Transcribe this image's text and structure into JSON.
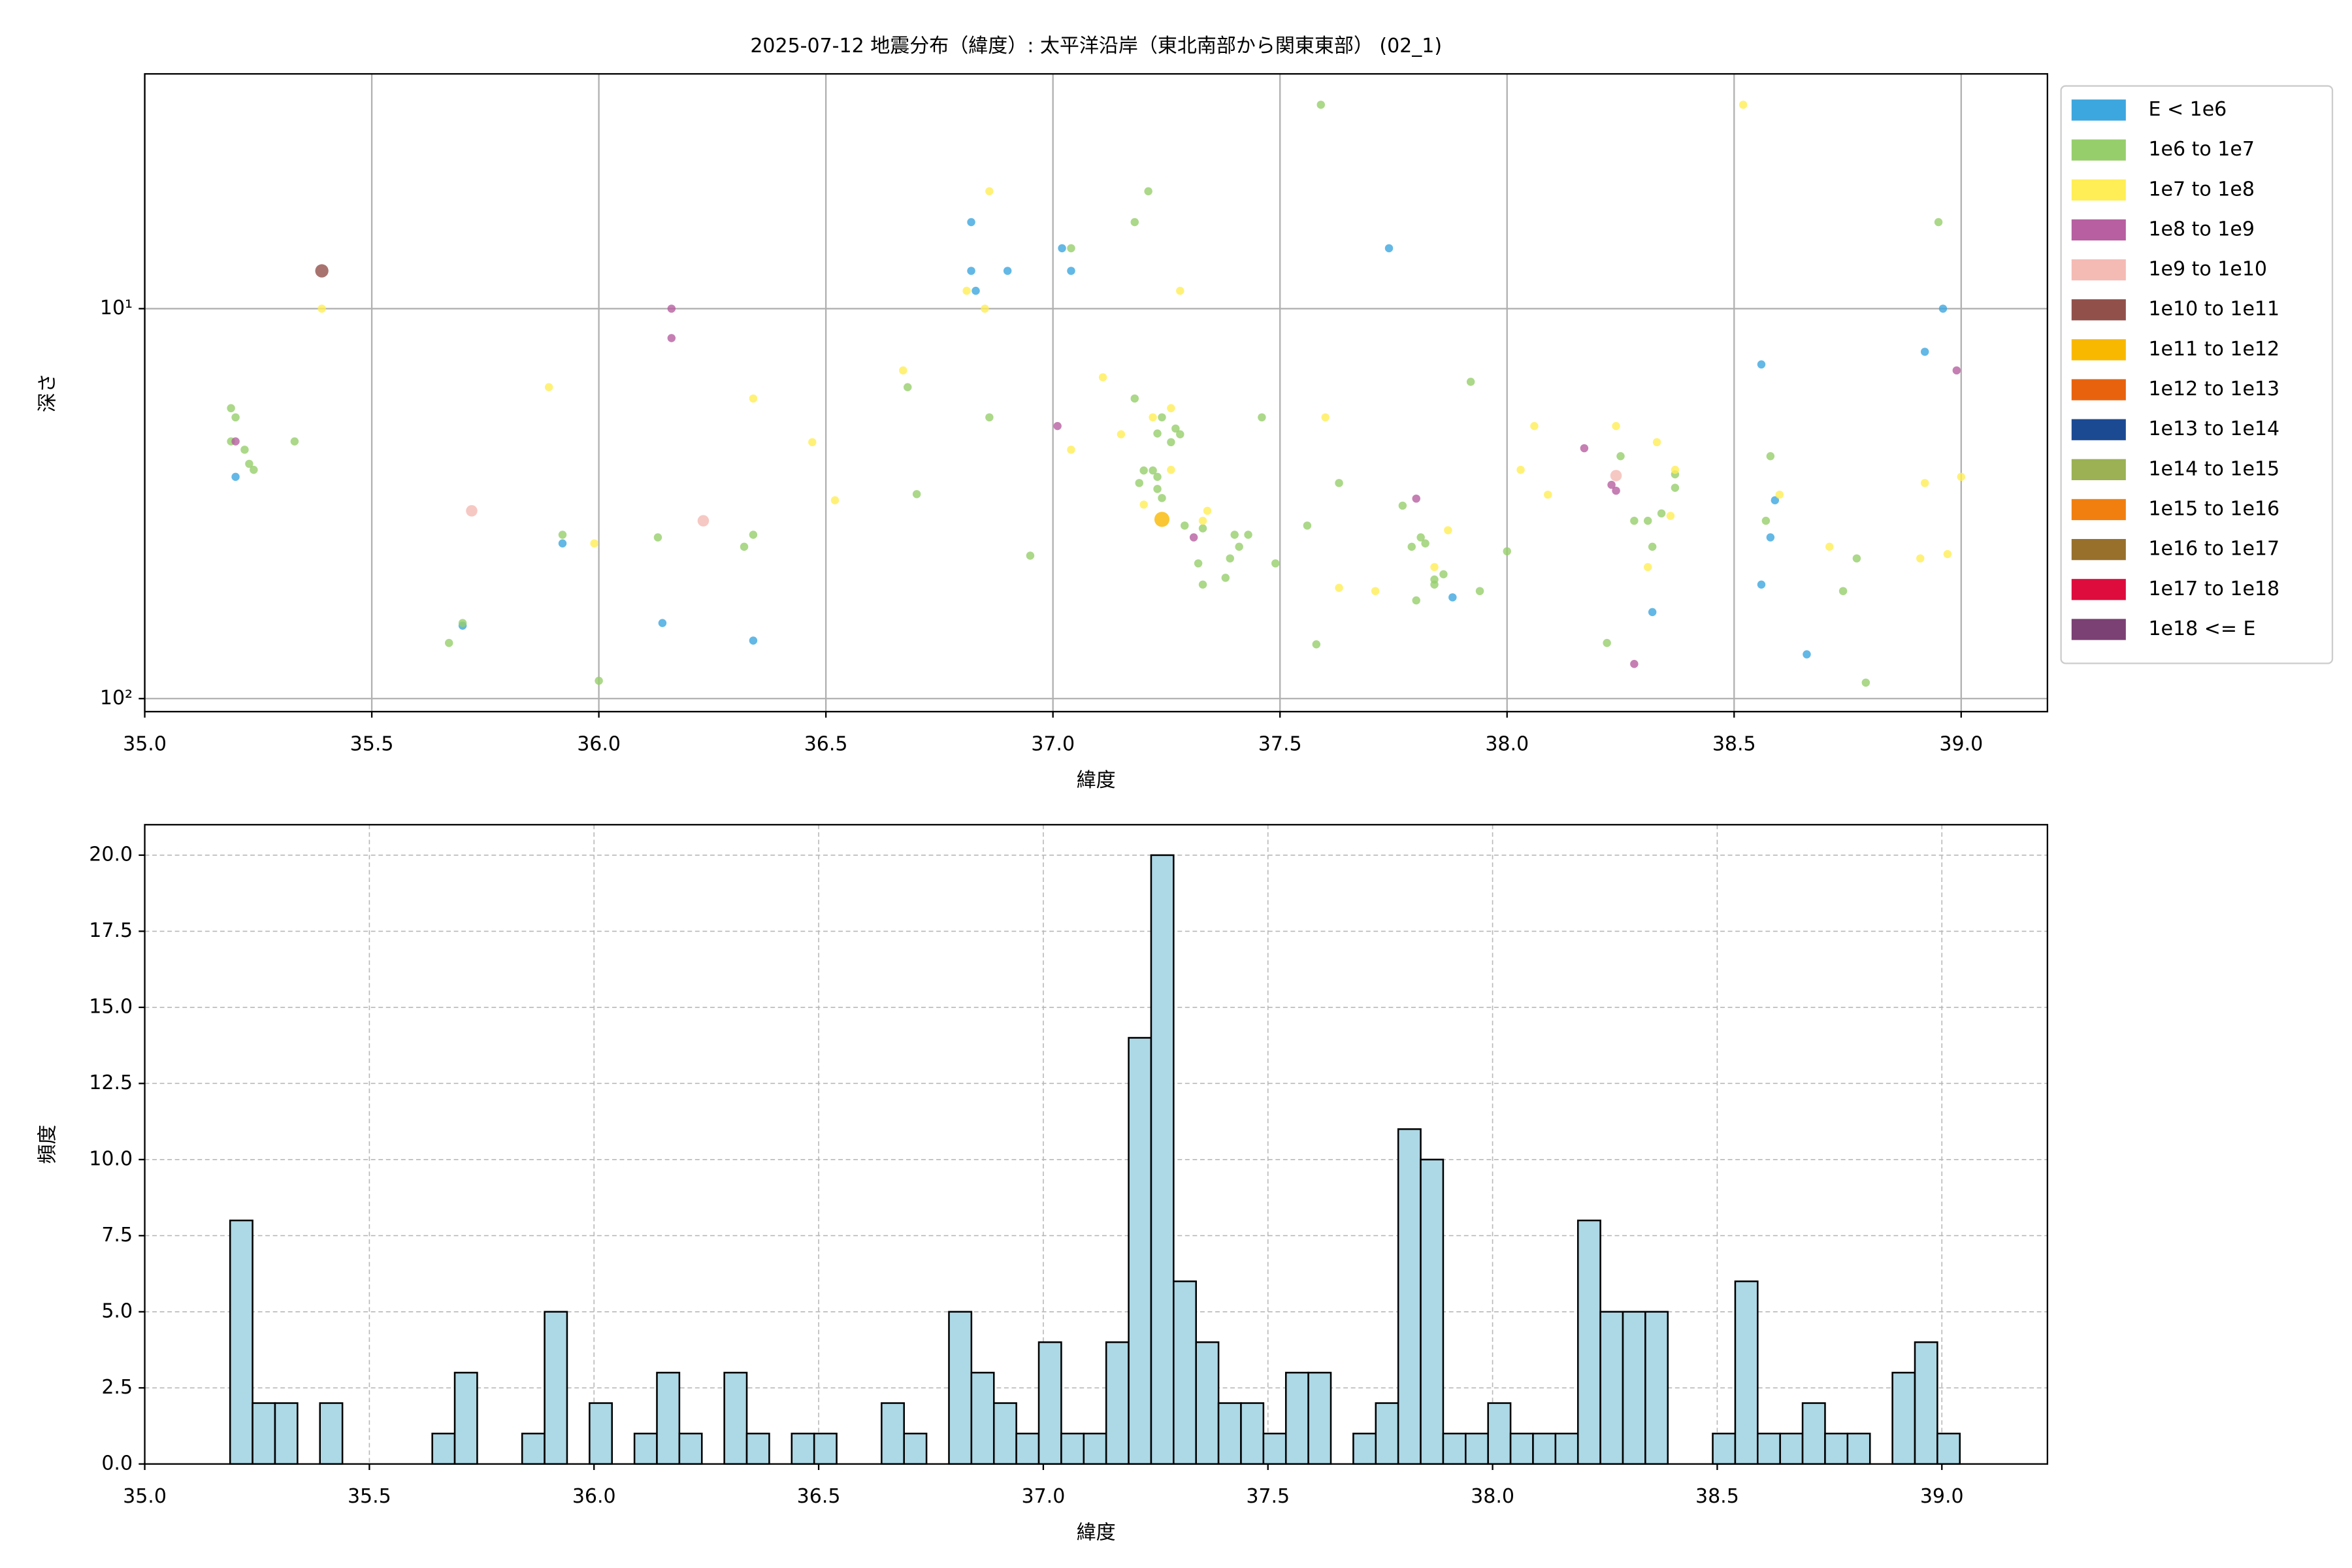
{
  "chart_data": [
    {
      "type": "scatter",
      "title": "2025-07-12 地震分布（緯度）: 太平洋沿岸（東北南部から関東東部） (02_1)",
      "x_label": "緯度",
      "y_label": "深さ",
      "xlim": [
        35,
        39.19
      ],
      "xticks": [
        {
          "value": 35,
          "label": "35.0"
        },
        35.5,
        {
          "value": 36,
          "label": "36.0"
        },
        36.5,
        {
          "value": 37,
          "label": "37.0"
        },
        37.5,
        {
          "value": 38,
          "label": "38.0"
        },
        38.5,
        {
          "value": 39,
          "label": "39.0"
        }
      ],
      "ylim": [
        108,
        2.5
      ],
      "ylog": true,
      "yticks": [
        {
          "value": 10,
          "label": "10¹"
        },
        {
          "value": 100,
          "label": "10²"
        }
      ],
      "grid": true,
      "grid_style": "solid",
      "legend": "outside right",
      "series": [
        {
          "name": "E < 1e6",
          "color": "#3ca6de",
          "x": [
            35.2,
            35.7,
            35.92,
            36.14,
            36.34,
            36.82,
            36.82,
            36.83,
            36.9,
            37.02,
            37.04,
            37.74,
            37.88,
            38.32,
            38.56,
            38.56,
            38.58,
            38.59,
            38.66,
            38.92,
            38.96
          ],
          "values": [
            27,
            65,
            40,
            64,
            71,
            6.0,
            8.0,
            9.0,
            8.0,
            7.0,
            8.0,
            7.0,
            55,
            60,
            13.9,
            51,
            38.6,
            31,
            77,
            12.9,
            10
          ]
        },
        {
          "name": "1e6 to 1e7",
          "color": "#96ce6c",
          "x": [
            35.19,
            35.2,
            35.19,
            35.22,
            35.23,
            35.24,
            35.33,
            35.67,
            35.7,
            35.92,
            36.0,
            36.13,
            36.32,
            36.34,
            36.68,
            36.7,
            36.86,
            36.95,
            37.04,
            37.18,
            37.18,
            37.21,
            37.19,
            37.2,
            37.22,
            37.23,
            37.23,
            37.27,
            37.28,
            37.26,
            37.24,
            37.23,
            37.24,
            37.29,
            37.33,
            37.32,
            37.33,
            37.39,
            37.38,
            37.4,
            37.41,
            37.43,
            37.46,
            37.49,
            37.56,
            37.58,
            37.59,
            37.63,
            37.77,
            37.79,
            37.8,
            37.81,
            37.82,
            37.84,
            37.86,
            37.84,
            37.92,
            37.94,
            38.0,
            38.22,
            38.25,
            38.28,
            38.31,
            38.32,
            38.34,
            38.37,
            38.37,
            38.57,
            38.58,
            38.74,
            38.77,
            38.79,
            38.95
          ],
          "values": [
            18,
            19,
            21.9,
            23,
            25,
            25.9,
            21.9,
            72,
            64,
            38,
            90,
            38.6,
            40.8,
            38,
            15.9,
            29.9,
            19,
            43,
            7.0,
            6.0,
            17,
            5.0,
            28,
            26,
            26,
            27,
            20.9,
            20.3,
            21,
            22,
            19,
            29,
            30.6,
            36,
            36.6,
            45,
            51,
            43.7,
            49,
            38,
            40.8,
            38,
            19,
            45,
            36,
            72.6,
            3.0,
            28,
            32,
            40.8,
            56,
            38.6,
            40,
            49.5,
            48,
            51,
            15.4,
            53,
            41.9,
            72,
            23.9,
            35,
            35,
            40.8,
            33.5,
            26.6,
            28.8,
            35,
            23.9,
            53,
            43.7,
            91,
            6.0
          ]
        },
        {
          "name": "1e7 to 1e8",
          "color": "#ffee55",
          "x": [
            35.39,
            35.89,
            35.99,
            36.34,
            36.47,
            36.52,
            36.67,
            36.81,
            36.85,
            36.86,
            37.04,
            37.11,
            37.15,
            37.22,
            37.26,
            37.28,
            37.26,
            37.2,
            37.34,
            37.33,
            37.6,
            37.63,
            37.71,
            37.87,
            37.84,
            38.03,
            38.06,
            38.09,
            38.24,
            38.33,
            38.31,
            38.36,
            38.37,
            38.52,
            38.6,
            38.71,
            38.91,
            38.92,
            38.97,
            39.0
          ],
          "values": [
            10,
            15.9,
            40,
            17,
            22,
            31,
            14.4,
            9,
            10,
            5,
            23,
            15,
            21,
            19,
            18,
            9,
            25.9,
            31.8,
            33,
            35,
            19,
            52,
            53,
            37,
            46,
            25.9,
            20,
            30,
            20,
            22,
            46,
            34,
            25.9,
            3.0,
            30,
            40.8,
            43.7,
            28,
            42.6,
            27
          ]
        },
        {
          "name": "1e8 to 1e9",
          "color": "#b75fa0",
          "x": [
            35.2,
            36.16,
            36.16,
            37.01,
            37.31,
            37.8,
            38.17,
            38.23,
            38.24,
            38.28,
            38.99
          ],
          "values": [
            21.9,
            10,
            11.9,
            20,
            38.6,
            30.7,
            22.8,
            28.3,
            29.3,
            81.5,
            14.4
          ]
        },
        {
          "name": "1e9 to 1e10",
          "color": "#f4bab4",
          "x": [
            35.72,
            36.23,
            38.24
          ],
          "values": [
            33,
            35,
            26.8
          ]
        },
        {
          "name": "1e10 to 1e11",
          "color": "#92504a",
          "x": [
            35.39
          ],
          "values": [
            8.0
          ]
        },
        {
          "name": "1e11 to 1e12",
          "color": "#f9b800",
          "x": [
            37.24
          ],
          "values": [
            34.7
          ]
        },
        {
          "name": "1e12 to 1e13",
          "color": "#e8620e",
          "x": [],
          "values": []
        },
        {
          "name": "1e13 to 1e14",
          "color": "#1b4a93",
          "x": [],
          "values": []
        },
        {
          "name": "1e14 to 1e15",
          "color": "#9bb153",
          "x": [],
          "values": []
        },
        {
          "name": "1e15 to 1e16",
          "color": "#f07f10",
          "x": [],
          "values": []
        },
        {
          "name": "1e16 to 1e17",
          "color": "#98702c",
          "x": [],
          "values": []
        },
        {
          "name": "1e17 to 1e18",
          "color": "#de0c3d",
          "x": [],
          "values": []
        },
        {
          "name": "1e18 <= E",
          "color": "#7b4074",
          "x": [],
          "values": []
        }
      ]
    },
    {
      "type": "histogram",
      "x_label": "緯度",
      "y_label": "頻度",
      "xlim": [
        35,
        39.235
      ],
      "xticks": [
        {
          "value": 35,
          "label": "35.0"
        },
        35.5,
        {
          "value": 36,
          "label": "36.0"
        },
        36.5,
        {
          "value": 37,
          "label": "37.0"
        },
        37.5,
        {
          "value": 38,
          "label": "38.0"
        },
        38.5,
        {
          "value": 39,
          "label": "39.0"
        }
      ],
      "ylim": [
        0,
        21
      ],
      "yticks": [
        {
          "value": 0,
          "label": "0.0"
        },
        2.5,
        {
          "value": 5,
          "label": "5.0"
        },
        7.5,
        {
          "value": 10,
          "label": "10.0"
        },
        12.5,
        {
          "value": 15,
          "label": "15.0"
        },
        17.5,
        {
          "value": 20,
          "label": "20.0"
        }
      ],
      "grid": true,
      "grid_style": "dashed",
      "color": "#add8e6",
      "bins": [
        35.19,
        35.24,
        35.29,
        35.34,
        35.39,
        35.44,
        35.49,
        35.54,
        35.59,
        35.64,
        35.69,
        35.74,
        35.79,
        35.84,
        35.89,
        35.94,
        35.99,
        36.04,
        36.09,
        36.14,
        36.19,
        36.24,
        36.29,
        36.34,
        36.39,
        36.44,
        36.49,
        36.54,
        36.59,
        36.64,
        36.69,
        36.74,
        36.79,
        36.84,
        36.89,
        36.94,
        36.99,
        37.04,
        37.09,
        37.14,
        37.19,
        37.24,
        37.29,
        37.34,
        37.39,
        37.44,
        37.49,
        37.54,
        37.59,
        37.64,
        37.69,
        37.74,
        37.79,
        37.84,
        37.89,
        37.94,
        37.99,
        38.04,
        38.09,
        38.14,
        38.19,
        38.24,
        38.29,
        38.34,
        38.39,
        38.44,
        38.49,
        38.54,
        38.59,
        38.64,
        38.69,
        38.74,
        38.79,
        38.84,
        38.89,
        38.94,
        38.99,
        39.04
      ],
      "values": [
        8,
        2,
        2,
        0,
        2,
        0,
        0,
        0,
        0,
        1,
        3,
        0,
        0,
        1,
        5,
        0,
        2,
        0,
        1,
        3,
        1,
        0,
        3,
        1,
        0,
        1,
        1,
        0,
        0,
        2,
        1,
        0,
        5,
        3,
        2,
        1,
        4,
        1,
        1,
        4,
        14,
        20,
        6,
        4,
        2,
        2,
        1,
        3,
        3,
        0,
        1,
        2,
        11,
        10,
        1,
        1,
        2,
        1,
        1,
        1,
        8,
        5,
        5,
        5,
        0,
        0,
        1,
        6,
        1,
        1,
        2,
        1,
        1,
        0,
        3,
        4,
        1
      ]
    }
  ]
}
